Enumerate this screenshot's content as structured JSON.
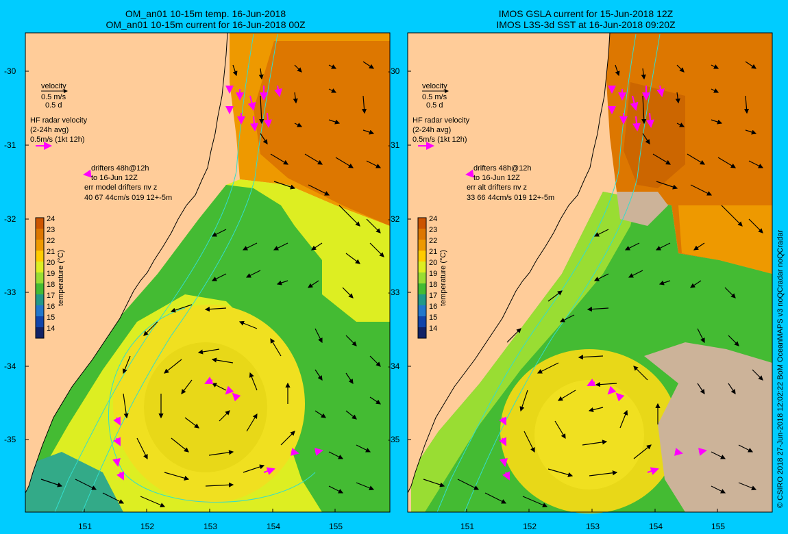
{
  "left_panel": {
    "title_line1": "OM_an01 10-15m temp. 16-Jun-2018",
    "title_line2": "OM_an01 10-15m current for 16-Jun-2018 00Z",
    "legend": {
      "velocity_title": "velocity",
      "velocity_scale": "0.5 m/s",
      "velocity_time": "0.5 d",
      "hf_line1": "HF radar velocity",
      "hf_line2": "(2-24h avg)",
      "hf_line3": "0.5m/s (1kt 12h)",
      "drifter_line1": "drifters 48h@12h",
      "drifter_line2": "to 16-Jun 12Z",
      "drifter_line3": "err model drifters nv z",
      "drifter_line4": "40 67 44cm/s 019 12+-5m"
    }
  },
  "right_panel": {
    "title_line1": "IMOS GSLA current for 15-Jun-2018 12Z",
    "title_line2": "IMOS L3S-3d SST at 16-Jun-2018 09:20Z",
    "legend": {
      "velocity_title": "velocity",
      "velocity_scale": "0.5 m/s",
      "velocity_time": "0.5 d",
      "hf_line1": "HF radar velocity",
      "hf_line2": "(2-24h avg)",
      "hf_line3": "0.5m/s (1kt 12h)",
      "drifter_line1": "drifters 48h@12h",
      "drifter_line2": "to 16-Jun 12Z",
      "drifter_line3": "err alt drifters nv z",
      "drifter_line4": "33 66 44cm/s 019 12+-5m"
    }
  },
  "axes": {
    "lat_labels": [
      "-30",
      "-31",
      "-32",
      "-33",
      "-34",
      "-35"
    ],
    "lon_labels": [
      "151",
      "152",
      "153",
      "154",
      "155"
    ]
  },
  "colorbar": {
    "ticks": [
      "24",
      "23",
      "22",
      "21",
      "20",
      "19",
      "18",
      "17",
      "16",
      "15",
      "14"
    ],
    "label": "temperature (°C)",
    "colors": [
      "#cc5500",
      "#dd7700",
      "#ee9900",
      "#ffcc00",
      "#ddee22",
      "#99dd33",
      "#44bb33",
      "#229988",
      "#2277cc",
      "#1144aa",
      "#112266"
    ]
  },
  "credit": "© CSIRO 2018  27-Jun-2018 12:02:22 BoM OceanMAPS v3 noQCradar noQCradar",
  "colors": {
    "frame_bg": "#00ccff",
    "land": "#ffcc99",
    "sst_warm": "#dd7700",
    "sst_mid": "#ddee22",
    "sst_cool": "#44bb33",
    "cloud": "#ccb399",
    "hf_radar_arrow": "#ff00ff",
    "isobath": "#33ddcc"
  }
}
